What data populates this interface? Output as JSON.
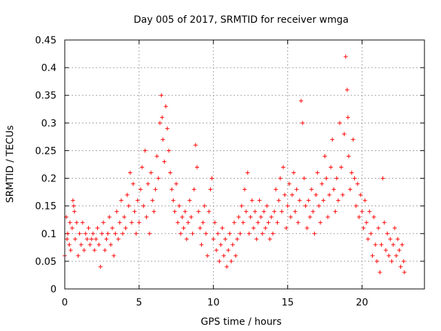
{
  "chart_data": {
    "type": "scatter",
    "title": "Day 005 of 2017, SRMTID for receiver wmga",
    "xlabel": "GPS time / hours",
    "ylabel": "SRMTID / TECUs",
    "xlim": [
      0,
      24.2
    ],
    "ylim": [
      0,
      0.45
    ],
    "xticks": [
      0,
      5,
      10,
      15,
      20
    ],
    "xtick_labels": [
      "0",
      "5",
      "10",
      "15",
      "20"
    ],
    "yticks": [
      0,
      0.05,
      0.1,
      0.15,
      0.2,
      0.25,
      0.3,
      0.35,
      0.4,
      0.45
    ],
    "ytick_labels": [
      "0",
      "0.05",
      "0.1",
      "0.15",
      "0.2",
      "0.25",
      "0.3",
      "0.35",
      "0.4",
      "0.45"
    ],
    "grid": true,
    "marker": "+",
    "series": [
      {
        "name": "SRMTID",
        "color": "#ff0000",
        "points": [
          [
            0.0,
            0.06
          ],
          [
            0.1,
            0.13
          ],
          [
            0.15,
            0.09
          ],
          [
            0.2,
            0.1
          ],
          [
            0.3,
            0.08
          ],
          [
            0.35,
            0.12
          ],
          [
            0.4,
            0.07
          ],
          [
            0.5,
            0.11
          ],
          [
            0.55,
            0.16
          ],
          [
            0.6,
            0.15
          ],
          [
            0.65,
            0.14
          ],
          [
            0.7,
            0.09
          ],
          [
            0.8,
            0.12
          ],
          [
            0.9,
            0.06
          ],
          [
            1.0,
            0.1
          ],
          [
            1.1,
            0.08
          ],
          [
            1.2,
            0.12
          ],
          [
            1.3,
            0.07
          ],
          [
            1.4,
            0.1
          ],
          [
            1.5,
            0.09
          ],
          [
            1.6,
            0.11
          ],
          [
            1.7,
            0.08
          ],
          [
            1.8,
            0.09
          ],
          [
            1.9,
            0.1
          ],
          [
            2.0,
            0.07
          ],
          [
            2.1,
            0.09
          ],
          [
            2.2,
            0.11
          ],
          [
            2.3,
            0.08
          ],
          [
            2.4,
            0.04
          ],
          [
            2.5,
            0.1
          ],
          [
            2.6,
            0.12
          ],
          [
            2.7,
            0.07
          ],
          [
            2.8,
            0.09
          ],
          [
            2.9,
            0.1
          ],
          [
            3.0,
            0.13
          ],
          [
            3.1,
            0.08
          ],
          [
            3.2,
            0.11
          ],
          [
            3.3,
            0.06
          ],
          [
            3.4,
            0.1
          ],
          [
            3.5,
            0.14
          ],
          [
            3.6,
            0.09
          ],
          [
            3.7,
            0.12
          ],
          [
            3.8,
            0.16
          ],
          [
            3.9,
            0.1
          ],
          [
            4.0,
            0.13
          ],
          [
            4.1,
            0.11
          ],
          [
            4.2,
            0.17
          ],
          [
            4.3,
            0.15
          ],
          [
            4.4,
            0.21
          ],
          [
            4.5,
            0.12
          ],
          [
            4.6,
            0.19
          ],
          [
            4.7,
            0.14
          ],
          [
            4.8,
            0.1
          ],
          [
            4.9,
            0.16
          ],
          [
            5.0,
            0.12
          ],
          [
            5.1,
            0.18
          ],
          [
            5.2,
            0.22
          ],
          [
            5.3,
            0.15
          ],
          [
            5.4,
            0.25
          ],
          [
            5.5,
            0.13
          ],
          [
            5.6,
            0.19
          ],
          [
            5.7,
            0.1
          ],
          [
            5.8,
            0.21
          ],
          [
            5.9,
            0.16
          ],
          [
            6.0,
            0.14
          ],
          [
            6.1,
            0.18
          ],
          [
            6.2,
            0.24
          ],
          [
            6.3,
            0.2
          ],
          [
            6.4,
            0.3
          ],
          [
            6.5,
            0.35
          ],
          [
            6.55,
            0.31
          ],
          [
            6.6,
            0.27
          ],
          [
            6.7,
            0.23
          ],
          [
            6.8,
            0.33
          ],
          [
            6.9,
            0.29
          ],
          [
            7.0,
            0.25
          ],
          [
            7.1,
            0.21
          ],
          [
            7.2,
            0.18
          ],
          [
            7.3,
            0.16
          ],
          [
            7.4,
            0.14
          ],
          [
            7.5,
            0.19
          ],
          [
            7.6,
            0.12
          ],
          [
            7.7,
            0.15
          ],
          [
            7.8,
            0.1
          ],
          [
            7.9,
            0.13
          ],
          [
            8.0,
            0.11
          ],
          [
            8.1,
            0.14
          ],
          [
            8.2,
            0.09
          ],
          [
            8.3,
            0.12
          ],
          [
            8.4,
            0.16
          ],
          [
            8.5,
            0.13
          ],
          [
            8.6,
            0.1
          ],
          [
            8.7,
            0.18
          ],
          [
            8.8,
            0.26
          ],
          [
            8.9,
            0.22
          ],
          [
            9.0,
            0.14
          ],
          [
            9.1,
            0.11
          ],
          [
            9.2,
            0.08
          ],
          [
            9.3,
            0.12
          ],
          [
            9.4,
            0.15
          ],
          [
            9.5,
            0.1
          ],
          [
            9.6,
            0.06
          ],
          [
            9.7,
            0.14
          ],
          [
            9.8,
            0.18
          ],
          [
            9.9,
            0.2
          ],
          [
            10.0,
            0.09
          ],
          [
            10.1,
            0.12
          ],
          [
            10.2,
            0.07
          ],
          [
            10.3,
            0.1
          ],
          [
            10.4,
            0.05
          ],
          [
            10.5,
            0.08
          ],
          [
            10.6,
            0.11
          ],
          [
            10.7,
            0.06
          ],
          [
            10.8,
            0.09
          ],
          [
            10.9,
            0.04
          ],
          [
            11.0,
            0.07
          ],
          [
            11.1,
            0.1
          ],
          [
            11.2,
            0.05
          ],
          [
            11.3,
            0.08
          ],
          [
            11.4,
            0.12
          ],
          [
            11.5,
            0.06
          ],
          [
            11.6,
            0.09
          ],
          [
            11.7,
            0.13
          ],
          [
            11.8,
            0.1
          ],
          [
            11.9,
            0.15
          ],
          [
            12.0,
            0.12
          ],
          [
            12.1,
            0.18
          ],
          [
            12.2,
            0.14
          ],
          [
            12.3,
            0.21
          ],
          [
            12.4,
            0.1
          ],
          [
            12.5,
            0.13
          ],
          [
            12.6,
            0.16
          ],
          [
            12.7,
            0.11
          ],
          [
            12.8,
            0.14
          ],
          [
            12.9,
            0.09
          ],
          [
            13.0,
            0.12
          ],
          [
            13.1,
            0.16
          ],
          [
            13.2,
            0.13
          ],
          [
            13.3,
            0.1
          ],
          [
            13.4,
            0.14
          ],
          [
            13.5,
            0.11
          ],
          [
            13.6,
            0.15
          ],
          [
            13.7,
            0.12
          ],
          [
            13.8,
            0.09
          ],
          [
            13.9,
            0.13
          ],
          [
            14.0,
            0.1
          ],
          [
            14.1,
            0.14
          ],
          [
            14.2,
            0.18
          ],
          [
            14.3,
            0.12
          ],
          [
            14.4,
            0.16
          ],
          [
            14.5,
            0.2
          ],
          [
            14.6,
            0.14
          ],
          [
            14.7,
            0.22
          ],
          [
            14.8,
            0.17
          ],
          [
            14.9,
            0.11
          ],
          [
            15.0,
            0.15
          ],
          [
            15.1,
            0.19
          ],
          [
            15.2,
            0.13
          ],
          [
            15.3,
            0.17
          ],
          [
            15.4,
            0.21
          ],
          [
            15.5,
            0.14
          ],
          [
            15.6,
            0.18
          ],
          [
            15.7,
            0.12
          ],
          [
            15.8,
            0.16
          ],
          [
            15.9,
            0.34
          ],
          [
            16.0,
            0.3
          ],
          [
            16.1,
            0.2
          ],
          [
            16.2,
            0.15
          ],
          [
            16.3,
            0.11
          ],
          [
            16.4,
            0.16
          ],
          [
            16.5,
            0.13
          ],
          [
            16.6,
            0.18
          ],
          [
            16.7,
            0.14
          ],
          [
            16.8,
            0.1
          ],
          [
            16.9,
            0.17
          ],
          [
            17.0,
            0.21
          ],
          [
            17.1,
            0.15
          ],
          [
            17.2,
            0.12
          ],
          [
            17.3,
            0.19
          ],
          [
            17.4,
            0.16
          ],
          [
            17.5,
            0.24
          ],
          [
            17.6,
            0.2
          ],
          [
            17.7,
            0.13
          ],
          [
            17.8,
            0.17
          ],
          [
            17.9,
            0.22
          ],
          [
            18.0,
            0.27
          ],
          [
            18.1,
            0.18
          ],
          [
            18.2,
            0.14
          ],
          [
            18.3,
            0.2
          ],
          [
            18.4,
            0.16
          ],
          [
            18.5,
            0.3
          ],
          [
            18.6,
            0.22
          ],
          [
            18.7,
            0.17
          ],
          [
            18.8,
            0.28
          ],
          [
            18.9,
            0.42
          ],
          [
            19.0,
            0.36
          ],
          [
            19.05,
            0.31
          ],
          [
            19.1,
            0.24
          ],
          [
            19.2,
            0.18
          ],
          [
            19.3,
            0.21
          ],
          [
            19.4,
            0.27
          ],
          [
            19.5,
            0.2
          ],
          [
            19.6,
            0.15
          ],
          [
            19.7,
            0.19
          ],
          [
            19.8,
            0.13
          ],
          [
            19.9,
            0.17
          ],
          [
            20.0,
            0.14
          ],
          [
            20.1,
            0.11
          ],
          [
            20.2,
            0.16
          ],
          [
            20.3,
            0.12
          ],
          [
            20.4,
            0.09
          ],
          [
            20.5,
            0.14
          ],
          [
            20.6,
            0.1
          ],
          [
            20.7,
            0.06
          ],
          [
            20.8,
            0.13
          ],
          [
            20.9,
            0.08
          ],
          [
            21.0,
            0.05
          ],
          [
            21.1,
            0.11
          ],
          [
            21.2,
            0.03
          ],
          [
            21.3,
            0.08
          ],
          [
            21.4,
            0.2
          ],
          [
            21.5,
            0.12
          ],
          [
            21.6,
            0.07
          ],
          [
            21.7,
            0.1
          ],
          [
            21.8,
            0.06
          ],
          [
            21.9,
            0.09
          ],
          [
            22.0,
            0.05
          ],
          [
            22.1,
            0.08
          ],
          [
            22.2,
            0.11
          ],
          [
            22.3,
            0.06
          ],
          [
            22.4,
            0.09
          ],
          [
            22.5,
            0.07
          ],
          [
            22.6,
            0.04
          ],
          [
            22.7,
            0.08
          ],
          [
            22.8,
            0.05
          ],
          [
            22.85,
            0.03
          ]
        ]
      }
    ]
  }
}
